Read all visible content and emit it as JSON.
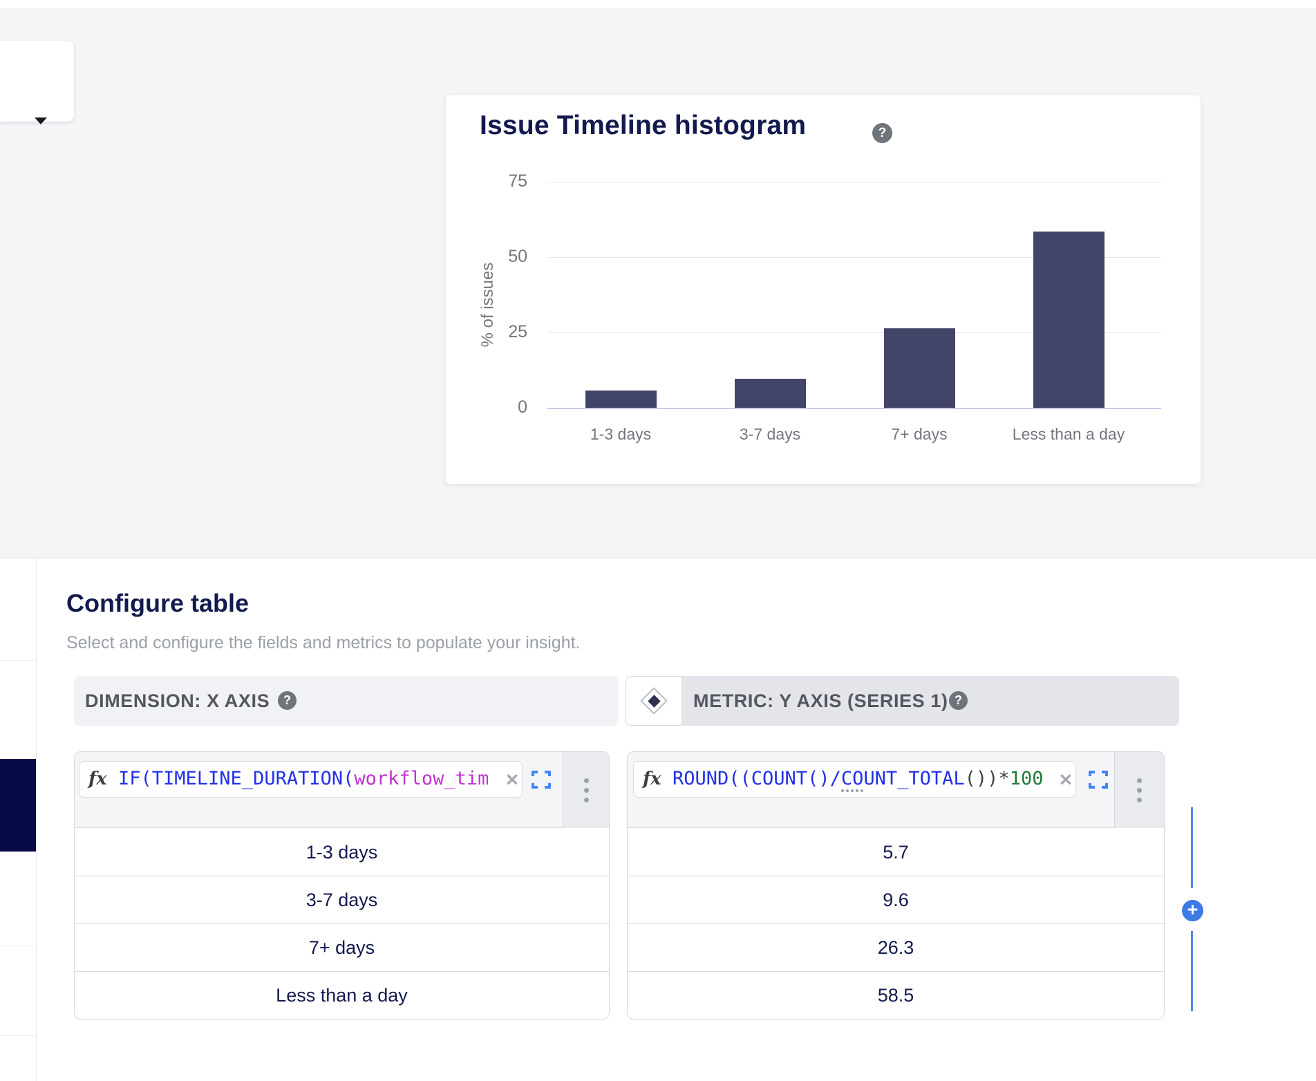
{
  "toolbar": {
    "dropdown_caret": "open-dropdown"
  },
  "chart_card": {
    "title": "Issue Timeline histogram",
    "help": "?"
  },
  "chart_data": {
    "type": "bar",
    "title": "Issue Timeline histogram",
    "categories": [
      "1-3 days",
      "3-7 days",
      "7+ days",
      "Less than a day"
    ],
    "values": [
      5.7,
      9.6,
      26.3,
      58.5
    ],
    "xlabel": "",
    "ylabel": "% of issues",
    "yticks": [
      0,
      25,
      50,
      75
    ],
    "ylim": [
      0,
      75
    ],
    "grid": true,
    "legend": "none",
    "bar_color": "#424468"
  },
  "configure": {
    "heading": "Configure table",
    "subtitle": "Select and configure the fields and metrics to populate your insight.",
    "dimension": {
      "header_label": "DIMENSION: X AXIS",
      "help": "?",
      "formula_icon": "fx",
      "formula_segments": [
        {
          "text": "IF(TIMELINE_DURATION(",
          "color": "blue"
        },
        {
          "text": "workflow_tim",
          "color": "magenta"
        }
      ],
      "clear": "×",
      "rows": [
        "1-3 days",
        "3-7 days",
        "7+ days",
        "Less than a day"
      ]
    },
    "metric": {
      "header_label": "METRIC: Y AXIS (SERIES 1)",
      "help": "?",
      "formula_icon": "fx",
      "formula_segments": [
        {
          "text": "ROUND((COUNT()/",
          "color": "blue"
        },
        {
          "text": "CO",
          "color": "blue",
          "dotted": true
        },
        {
          "text": "UNT_TOTAL",
          "color": "blue"
        },
        {
          "text": "())",
          "color": "dark"
        },
        {
          "text": "*",
          "color": "dark"
        },
        {
          "text": "100",
          "color": "green"
        }
      ],
      "clear": "×",
      "rows": [
        "5.7",
        "9.6",
        "26.3",
        "58.5"
      ]
    },
    "add_series_label": "+"
  },
  "colors": {
    "accent_blue": "#3d7ae5",
    "bar": "#424468",
    "heading_navy": "#121a4e",
    "hero_bg": "#f4f5f7",
    "sidebar_active": "#060b45"
  }
}
